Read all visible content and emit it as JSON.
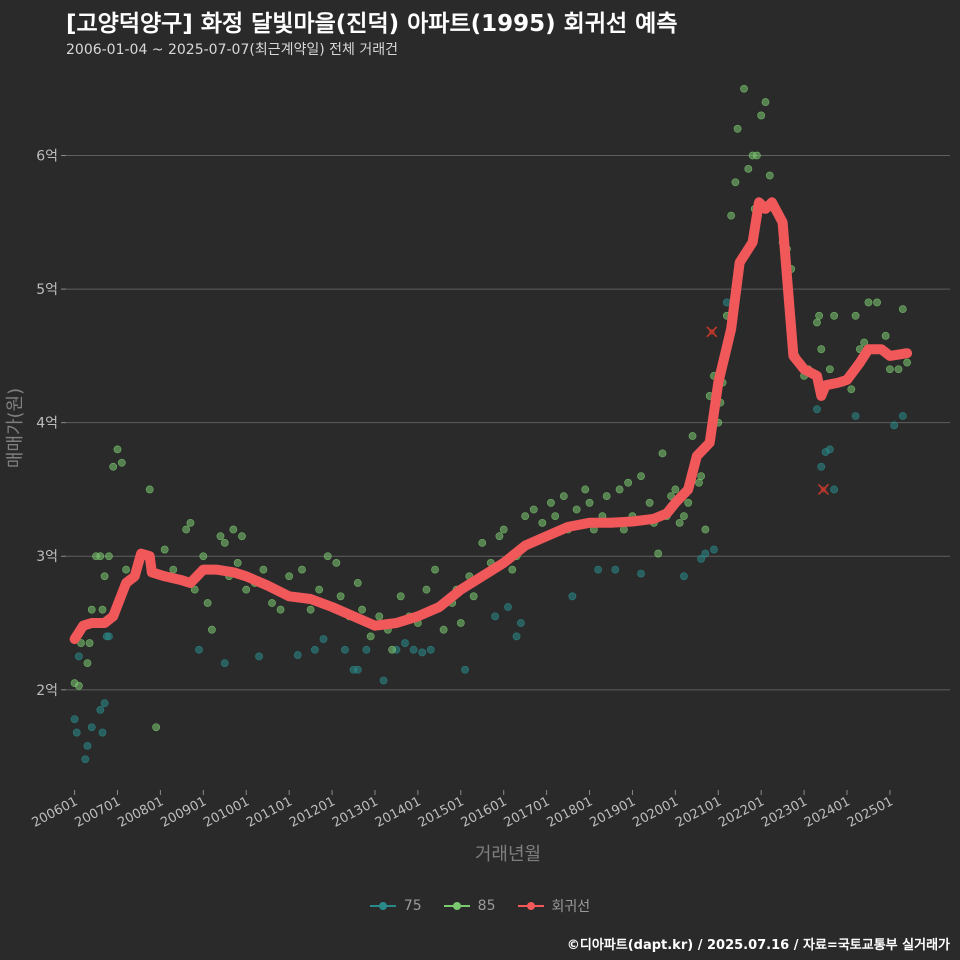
{
  "title": "[고양덕양구] 화정 달빛마을(진덕) 아파트(1995) 회귀선 예측",
  "subtitle": "2006-01-04 ~ 2025-07-07(최근계약일) 전체 거래건",
  "footer": "©디아파트(dapt.kr) / 2025.07.16 / 자료=국토교통부 실거래가",
  "chart_data": {
    "type": "scatter",
    "xlabel": "거래년월",
    "ylabel": "매매가(원)",
    "xlim": [
      2005.8,
      2026.4
    ],
    "ylim": [
      1.25,
      6.7
    ],
    "y_ticks": [
      {
        "value": 2,
        "label": "2억"
      },
      {
        "value": 3,
        "label": "3억"
      },
      {
        "value": 4,
        "label": "4억"
      },
      {
        "value": 5,
        "label": "5억"
      },
      {
        "value": 6,
        "label": "6억"
      }
    ],
    "x_ticks": [
      {
        "value": 2006,
        "label": "200601"
      },
      {
        "value": 2007,
        "label": "200701"
      },
      {
        "value": 2008,
        "label": "200801"
      },
      {
        "value": 2009,
        "label": "200901"
      },
      {
        "value": 2010,
        "label": "201001"
      },
      {
        "value": 2011,
        "label": "201101"
      },
      {
        "value": 2012,
        "label": "201201"
      },
      {
        "value": 2013,
        "label": "201301"
      },
      {
        "value": 2014,
        "label": "201401"
      },
      {
        "value": 2015,
        "label": "201501"
      },
      {
        "value": 2016,
        "label": "201601"
      },
      {
        "value": 2017,
        "label": "201701"
      },
      {
        "value": 2018,
        "label": "201801"
      },
      {
        "value": 2019,
        "label": "201901"
      },
      {
        "value": 2020,
        "label": "202001"
      },
      {
        "value": 2021,
        "label": "202101"
      },
      {
        "value": 2022,
        "label": "202201"
      },
      {
        "value": 2023,
        "label": "202301"
      },
      {
        "value": 2024,
        "label": "202401"
      },
      {
        "value": 2025,
        "label": "202501"
      }
    ],
    "grid": "horizontal",
    "legend": "bottom",
    "series": [
      {
        "name": "75",
        "color": "#2a8a8a",
        "points": [
          [
            2006.0,
            1.78
          ],
          [
            2006.05,
            1.68
          ],
          [
            2006.1,
            2.25
          ],
          [
            2006.3,
            1.58
          ],
          [
            2006.25,
            1.48
          ],
          [
            2006.4,
            1.72
          ],
          [
            2006.6,
            1.85
          ],
          [
            2006.7,
            1.9
          ],
          [
            2006.75,
            2.4
          ],
          [
            2006.8,
            2.4
          ],
          [
            2006.65,
            1.68
          ],
          [
            2008.9,
            2.3
          ],
          [
            2009.5,
            2.2
          ],
          [
            2010.3,
            2.25
          ],
          [
            2011.2,
            2.26
          ],
          [
            2011.6,
            2.3
          ],
          [
            2011.8,
            2.38
          ],
          [
            2012.3,
            2.3
          ],
          [
            2012.5,
            2.15
          ],
          [
            2012.6,
            2.15
          ],
          [
            2012.8,
            2.3
          ],
          [
            2013.2,
            2.07
          ],
          [
            2013.5,
            2.3
          ],
          [
            2013.7,
            2.35
          ],
          [
            2013.9,
            2.3
          ],
          [
            2014.1,
            2.28
          ],
          [
            2014.3,
            2.3
          ],
          [
            2015.1,
            2.15
          ],
          [
            2015.8,
            2.55
          ],
          [
            2016.1,
            2.62
          ],
          [
            2016.3,
            2.4
          ],
          [
            2016.4,
            2.5
          ],
          [
            2017.6,
            2.7
          ],
          [
            2018.2,
            2.9
          ],
          [
            2018.6,
            2.9
          ],
          [
            2019.2,
            2.87
          ],
          [
            2020.2,
            2.85
          ],
          [
            2020.6,
            2.98
          ],
          [
            2020.7,
            3.02
          ],
          [
            2020.9,
            3.05
          ],
          [
            2021.2,
            4.9
          ],
          [
            2023.3,
            4.1
          ],
          [
            2023.4,
            3.67
          ],
          [
            2023.5,
            3.78
          ],
          [
            2023.6,
            3.8
          ],
          [
            2023.7,
            3.5
          ],
          [
            2024.2,
            4.05
          ],
          [
            2025.1,
            3.98
          ],
          [
            2025.3,
            4.05
          ]
        ]
      },
      {
        "name": "85",
        "color": "#7bc96f",
        "points": [
          [
            2006.0,
            2.05
          ],
          [
            2006.1,
            2.03
          ],
          [
            2006.15,
            2.35
          ],
          [
            2006.3,
            2.2
          ],
          [
            2006.35,
            2.35
          ],
          [
            2006.4,
            2.6
          ],
          [
            2006.45,
            2.5
          ],
          [
            2006.5,
            3.0
          ],
          [
            2006.6,
            3.0
          ],
          [
            2006.65,
            2.6
          ],
          [
            2006.7,
            2.85
          ],
          [
            2006.8,
            3.0
          ],
          [
            2006.9,
            3.67
          ],
          [
            2007.0,
            3.8
          ],
          [
            2007.1,
            3.7
          ],
          [
            2007.2,
            2.9
          ],
          [
            2007.4,
            2.85
          ],
          [
            2007.6,
            3.02
          ],
          [
            2007.75,
            3.5
          ],
          [
            2007.9,
            1.72
          ],
          [
            2008.1,
            3.05
          ],
          [
            2008.3,
            2.9
          ],
          [
            2008.6,
            3.2
          ],
          [
            2008.7,
            3.25
          ],
          [
            2008.8,
            2.75
          ],
          [
            2009.0,
            3.0
          ],
          [
            2009.1,
            2.65
          ],
          [
            2009.2,
            2.45
          ],
          [
            2009.3,
            2.9
          ],
          [
            2009.4,
            3.15
          ],
          [
            2009.5,
            3.1
          ],
          [
            2009.6,
            2.85
          ],
          [
            2009.7,
            3.2
          ],
          [
            2009.8,
            2.95
          ],
          [
            2009.9,
            3.15
          ],
          [
            2010.0,
            2.75
          ],
          [
            2010.2,
            2.8
          ],
          [
            2010.4,
            2.9
          ],
          [
            2010.6,
            2.65
          ],
          [
            2010.8,
            2.6
          ],
          [
            2011.0,
            2.85
          ],
          [
            2011.2,
            2.7
          ],
          [
            2011.3,
            2.9
          ],
          [
            2011.5,
            2.6
          ],
          [
            2011.7,
            2.75
          ],
          [
            2011.9,
            3.0
          ],
          [
            2012.1,
            2.95
          ],
          [
            2012.2,
            2.7
          ],
          [
            2012.4,
            2.55
          ],
          [
            2012.6,
            2.8
          ],
          [
            2012.7,
            2.6
          ],
          [
            2012.9,
            2.4
          ],
          [
            2013.1,
            2.55
          ],
          [
            2013.3,
            2.45
          ],
          [
            2013.4,
            2.3
          ],
          [
            2013.6,
            2.7
          ],
          [
            2013.8,
            2.55
          ],
          [
            2014.0,
            2.5
          ],
          [
            2014.2,
            2.75
          ],
          [
            2014.3,
            2.6
          ],
          [
            2014.4,
            2.9
          ],
          [
            2014.6,
            2.45
          ],
          [
            2014.8,
            2.65
          ],
          [
            2014.9,
            2.75
          ],
          [
            2015.0,
            2.5
          ],
          [
            2015.2,
            2.85
          ],
          [
            2015.3,
            2.7
          ],
          [
            2015.5,
            3.1
          ],
          [
            2015.7,
            2.95
          ],
          [
            2015.9,
            3.15
          ],
          [
            2016.0,
            3.2
          ],
          [
            2016.2,
            2.9
          ],
          [
            2016.3,
            3.0
          ],
          [
            2016.5,
            3.3
          ],
          [
            2016.6,
            3.1
          ],
          [
            2016.7,
            3.35
          ],
          [
            2016.9,
            3.25
          ],
          [
            2017.0,
            3.15
          ],
          [
            2017.1,
            3.4
          ],
          [
            2017.2,
            3.3
          ],
          [
            2017.4,
            3.45
          ],
          [
            2017.5,
            3.2
          ],
          [
            2017.7,
            3.35
          ],
          [
            2017.9,
            3.5
          ],
          [
            2018.0,
            3.4
          ],
          [
            2018.1,
            3.2
          ],
          [
            2018.3,
            3.3
          ],
          [
            2018.4,
            3.45
          ],
          [
            2018.5,
            3.25
          ],
          [
            2018.7,
            3.5
          ],
          [
            2018.8,
            3.2
          ],
          [
            2018.9,
            3.55
          ],
          [
            2019.0,
            3.3
          ],
          [
            2019.2,
            3.6
          ],
          [
            2019.4,
            3.4
          ],
          [
            2019.5,
            3.25
          ],
          [
            2019.6,
            3.02
          ],
          [
            2019.7,
            3.77
          ],
          [
            2019.8,
            3.3
          ],
          [
            2019.9,
            3.45
          ],
          [
            2020.0,
            3.5
          ],
          [
            2020.1,
            3.25
          ],
          [
            2020.2,
            3.3
          ],
          [
            2020.3,
            3.4
          ],
          [
            2020.4,
            3.9
          ],
          [
            2020.5,
            3.75
          ],
          [
            2020.55,
            3.55
          ],
          [
            2020.6,
            3.6
          ],
          [
            2020.7,
            3.2
          ],
          [
            2020.8,
            4.2
          ],
          [
            2020.9,
            4.35
          ],
          [
            2021.0,
            4.0
          ],
          [
            2021.05,
            4.15
          ],
          [
            2021.1,
            4.3
          ],
          [
            2021.2,
            4.8
          ],
          [
            2021.3,
            5.55
          ],
          [
            2021.4,
            5.8
          ],
          [
            2021.45,
            6.2
          ],
          [
            2021.6,
            6.5
          ],
          [
            2021.7,
            5.9
          ],
          [
            2021.8,
            6.0
          ],
          [
            2021.85,
            5.6
          ],
          [
            2021.9,
            6.0
          ],
          [
            2022.0,
            6.3
          ],
          [
            2022.1,
            6.4
          ],
          [
            2022.2,
            5.85
          ],
          [
            2022.3,
            5.6
          ],
          [
            2022.5,
            5.35
          ],
          [
            2022.6,
            5.3
          ],
          [
            2022.7,
            5.15
          ],
          [
            2022.8,
            4.5
          ],
          [
            2023.0,
            4.35
          ],
          [
            2023.1,
            4.4
          ],
          [
            2023.3,
            4.75
          ],
          [
            2023.35,
            4.8
          ],
          [
            2023.4,
            4.55
          ],
          [
            2023.6,
            4.4
          ],
          [
            2023.7,
            4.8
          ],
          [
            2023.9,
            4.3
          ],
          [
            2024.1,
            4.25
          ],
          [
            2024.2,
            4.8
          ],
          [
            2024.3,
            4.55
          ],
          [
            2024.4,
            4.6
          ],
          [
            2024.5,
            4.9
          ],
          [
            2024.7,
            4.9
          ],
          [
            2024.9,
            4.65
          ],
          [
            2025.0,
            4.4
          ],
          [
            2025.2,
            4.4
          ],
          [
            2025.3,
            4.85
          ],
          [
            2025.4,
            4.45
          ]
        ]
      }
    ],
    "regression": {
      "name": "회귀선",
      "color": "#f0585a",
      "points": [
        [
          2006.0,
          2.38
        ],
        [
          2006.2,
          2.48
        ],
        [
          2006.4,
          2.5
        ],
        [
          2006.7,
          2.5
        ],
        [
          2006.9,
          2.55
        ],
        [
          2007.2,
          2.8
        ],
        [
          2007.4,
          2.85
        ],
        [
          2007.55,
          3.02
        ],
        [
          2007.75,
          3.0
        ],
        [
          2007.8,
          2.88
        ],
        [
          2008.1,
          2.85
        ],
        [
          2008.5,
          2.82
        ],
        [
          2008.7,
          2.8
        ],
        [
          2009.0,
          2.9
        ],
        [
          2009.3,
          2.9
        ],
        [
          2009.7,
          2.88
        ],
        [
          2010.0,
          2.85
        ],
        [
          2010.5,
          2.78
        ],
        [
          2011.0,
          2.7
        ],
        [
          2011.5,
          2.68
        ],
        [
          2012.0,
          2.62
        ],
        [
          2012.5,
          2.55
        ],
        [
          2013.0,
          2.48
        ],
        [
          2013.5,
          2.5
        ],
        [
          2014.0,
          2.55
        ],
        [
          2014.5,
          2.62
        ],
        [
          2015.0,
          2.75
        ],
        [
          2015.5,
          2.85
        ],
        [
          2016.0,
          2.95
        ],
        [
          2016.5,
          3.08
        ],
        [
          2017.0,
          3.15
        ],
        [
          2017.5,
          3.22
        ],
        [
          2018.0,
          3.25
        ],
        [
          2018.5,
          3.25
        ],
        [
          2019.0,
          3.26
        ],
        [
          2019.5,
          3.28
        ],
        [
          2019.8,
          3.32
        ],
        [
          2020.0,
          3.4
        ],
        [
          2020.3,
          3.5
        ],
        [
          2020.5,
          3.75
        ],
        [
          2020.8,
          3.85
        ],
        [
          2021.0,
          4.3
        ],
        [
          2021.3,
          4.7
        ],
        [
          2021.5,
          5.2
        ],
        [
          2021.8,
          5.35
        ],
        [
          2021.95,
          5.65
        ],
        [
          2022.1,
          5.6
        ],
        [
          2022.25,
          5.65
        ],
        [
          2022.5,
          5.5
        ],
        [
          2022.75,
          4.5
        ],
        [
          2023.0,
          4.4
        ],
        [
          2023.3,
          4.35
        ],
        [
          2023.4,
          4.2
        ],
        [
          2023.5,
          4.28
        ],
        [
          2023.8,
          4.3
        ],
        [
          2024.0,
          4.32
        ],
        [
          2024.3,
          4.45
        ],
        [
          2024.5,
          4.55
        ],
        [
          2024.8,
          4.55
        ],
        [
          2025.0,
          4.5
        ],
        [
          2025.4,
          4.52
        ]
      ]
    },
    "outliers": [
      {
        "x": 2020.85,
        "y": 4.68
      },
      {
        "x": 2023.45,
        "y": 3.5
      }
    ]
  }
}
